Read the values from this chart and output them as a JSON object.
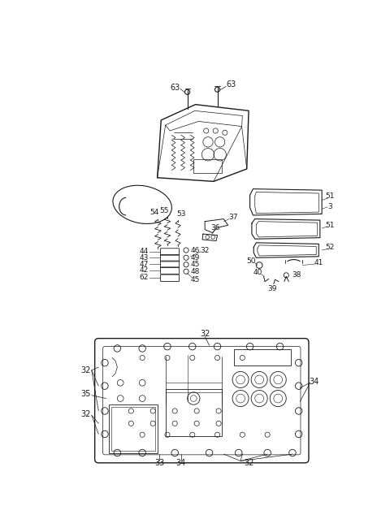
{
  "bg_color": "#ffffff",
  "line_color": "#1a1a1a",
  "fig_width": 4.8,
  "fig_height": 6.55,
  "dpi": 100,
  "lw": 0.7
}
